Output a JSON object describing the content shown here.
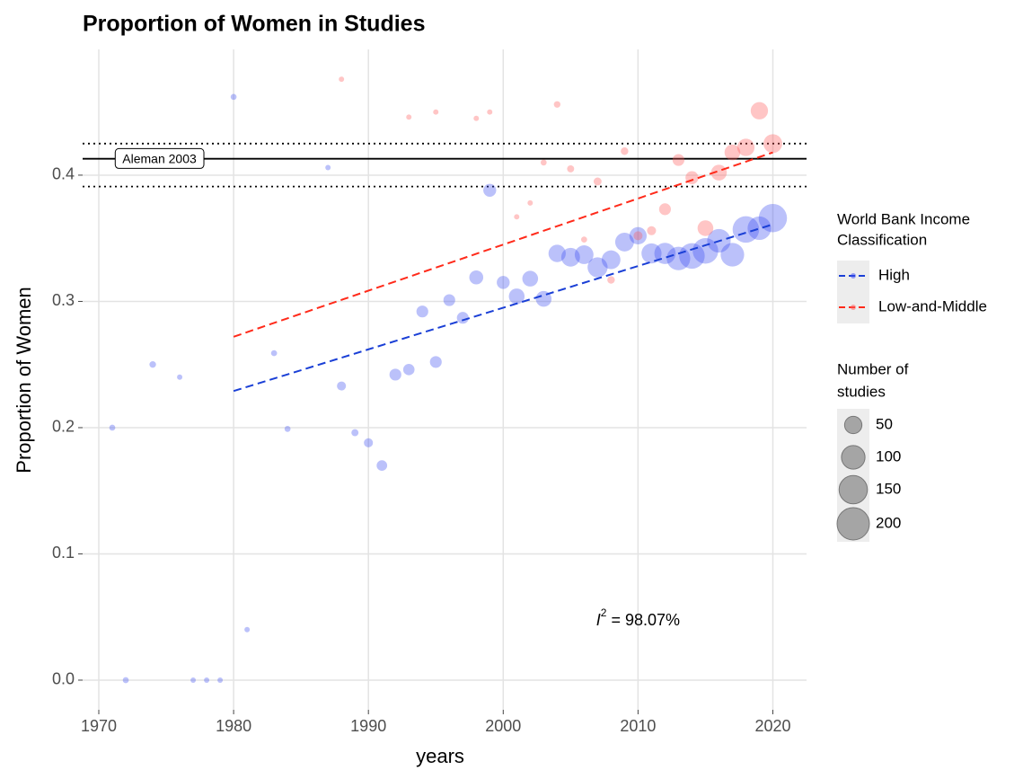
{
  "chart_data": {
    "type": "scatter",
    "title": "Proportion of Women in Studies",
    "x_label": "years",
    "y_label": "Proportion of Women",
    "xlim": [
      1968.8,
      2022.5
    ],
    "ylim": [
      -0.0235,
      0.4996
    ],
    "xticks": [
      1970,
      1980,
      1990,
      2000,
      2010,
      2020
    ],
    "yticks": [
      {
        "value": 0,
        "label": "0.0"
      },
      0.1,
      0.2,
      0.3,
      0.4
    ],
    "grid": true,
    "color_legend_title": [
      "World Bank Income",
      "Classification"
    ],
    "size_legend_title": [
      "Number of",
      " studies"
    ],
    "size_legend": [
      50,
      100,
      150,
      200
    ],
    "series": [
      {
        "name": "High",
        "color": "#3b4cf0",
        "line_color": "#1a3fd6",
        "x": [
          1971,
          1972,
          1974,
          1976,
          1977,
          1978,
          1979,
          1980,
          1981,
          1983,
          1984,
          1987,
          1988,
          1989,
          1990,
          1991,
          1992,
          1993,
          1994,
          1995,
          1996,
          1997,
          1998,
          1999,
          2000,
          2001,
          2002,
          2003,
          2004,
          2005,
          2006,
          2007,
          2008,
          2009,
          2010,
          2011,
          2012,
          2013,
          2014,
          2015,
          2016,
          2017,
          2018,
          2019,
          2020
        ],
        "values": [
          0.2,
          0.0,
          0.25,
          0.24,
          0.0,
          0.0,
          0.0,
          0.462,
          0.04,
          0.259,
          0.199,
          0.406,
          0.233,
          0.196,
          0.188,
          0.17,
          0.242,
          0.246,
          0.292,
          0.252,
          0.301,
          0.287,
          0.319,
          0.388,
          0.315,
          0.304,
          0.318,
          0.302,
          0.338,
          0.335,
          0.337,
          0.327,
          0.333,
          0.347,
          0.352,
          0.338,
          0.338,
          0.334,
          0.336,
          0.34,
          0.348,
          0.337,
          0.357,
          0.358,
          0.366
        ],
        "sizes": [
          3,
          3,
          4,
          2,
          2,
          2,
          2,
          3,
          2,
          3,
          3,
          2,
          10,
          5,
          10,
          15,
          20,
          18,
          20,
          20,
          20,
          20,
          30,
          25,
          25,
          40,
          40,
          40,
          50,
          60,
          60,
          70,
          60,
          60,
          50,
          70,
          80,
          100,
          120,
          120,
          100,
          100,
          130,
          100,
          150
        ],
        "trend_x": [
          1980,
          2020
        ],
        "trend_values": [
          0.229,
          0.361
        ]
      },
      {
        "name": "Low-and-Middle",
        "color": "#ff5a5a",
        "line_color": "#ff2a1a",
        "x": [
          1988,
          1993,
          1995,
          1998,
          1999,
          2001,
          2002,
          2003,
          2004,
          2005,
          2006,
          2007,
          2008,
          2009,
          2010,
          2011,
          2012,
          2013,
          2014,
          2015,
          2016,
          2017,
          2018,
          2019,
          2020
        ],
        "values": [
          0.476,
          0.446,
          0.45,
          0.445,
          0.45,
          0.367,
          0.378,
          0.41,
          0.456,
          0.405,
          0.349,
          0.395,
          0.317,
          0.419,
          0.352,
          0.356,
          0.373,
          0.412,
          0.398,
          0.358,
          0.402,
          0.418,
          0.422,
          0.451,
          0.425
        ],
        "sizes": [
          2,
          2,
          2,
          2,
          2,
          2,
          2,
          3,
          4,
          5,
          3,
          7,
          6,
          6,
          10,
          10,
          20,
          20,
          25,
          40,
          40,
          40,
          50,
          50,
          60
        ],
        "trend_x": [
          1980,
          2020
        ],
        "trend_values": [
          0.272,
          0.418
        ]
      }
    ],
    "reference": {
      "label": "Aleman 2003",
      "label_x": 1974.5,
      "value": 0.413,
      "lower": 0.391,
      "upper": 0.425
    },
    "i2_annotation": {
      "symbol": "I",
      "superscript": "2",
      "text": " = 98.07%",
      "x": 2010,
      "y": 0.047
    }
  }
}
